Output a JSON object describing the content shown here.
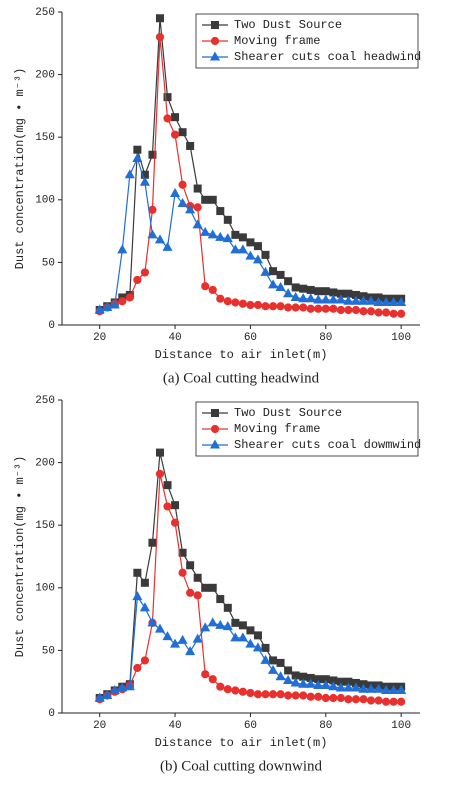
{
  "chart_data": [
    {
      "type": "line",
      "caption": "(a) Coal cutting headwind",
      "xlabel": "Distance to air inlet(m)",
      "ylabel": "Dust concentration(mg • m⁻³)",
      "xlim": [
        10,
        105
      ],
      "xticks": [
        20,
        40,
        60,
        80,
        100
      ],
      "ylim": [
        0,
        250
      ],
      "yticks": [
        0,
        50,
        100,
        150,
        200,
        250
      ],
      "legend": "upper right",
      "x": [
        20,
        22,
        24,
        26,
        28,
        30,
        32,
        34,
        36,
        38,
        40,
        42,
        44,
        46,
        48,
        50,
        52,
        54,
        56,
        58,
        60,
        62,
        64,
        66,
        68,
        70,
        72,
        74,
        76,
        78,
        80,
        82,
        84,
        86,
        88,
        90,
        92,
        94,
        96,
        98,
        100
      ],
      "series": [
        {
          "name": "Two Dust Source",
          "color": "#3a3a3a",
          "marker": "square",
          "values": [
            12,
            15,
            18,
            22,
            24,
            140,
            120,
            136,
            245,
            182,
            166,
            154,
            143,
            109,
            100,
            100,
            91,
            84,
            72,
            70,
            66,
            63,
            56,
            43,
            40,
            35,
            30,
            29,
            28,
            27,
            27,
            26,
            25,
            25,
            24,
            23,
            22,
            22,
            21,
            21,
            21
          ]
        },
        {
          "name": "Moving frame",
          "color": "#e8312f",
          "marker": "circle",
          "values": [
            11,
            14,
            17,
            19,
            22,
            36,
            42,
            92,
            230,
            165,
            152,
            112,
            95,
            94,
            31,
            28,
            21,
            19,
            18,
            17,
            16,
            16,
            15,
            15,
            15,
            14,
            14,
            14,
            13,
            13,
            13,
            13,
            12,
            12,
            12,
            11,
            11,
            10,
            10,
            9,
            9
          ]
        },
        {
          "name": "Shearer cuts coal headwind",
          "color": "#1f6fd6",
          "marker": "triangle",
          "values": [
            12,
            14,
            16,
            60,
            120,
            133,
            114,
            72,
            68,
            62,
            105,
            97,
            92,
            80,
            74,
            72,
            70,
            69,
            60,
            60,
            55,
            52,
            42,
            32,
            30,
            25,
            22,
            21,
            21,
            20,
            20,
            20,
            20,
            19,
            19,
            19,
            19,
            18,
            18,
            18,
            18
          ]
        }
      ]
    },
    {
      "type": "line",
      "caption": "(b) Coal cutting downwind",
      "xlabel": "Distance to air inlet(m)",
      "ylabel": "Dust concentration(mg • m⁻³)",
      "xlim": [
        10,
        105
      ],
      "xticks": [
        20,
        40,
        60,
        80,
        100
      ],
      "ylim": [
        0,
        250
      ],
      "yticks": [
        0,
        50,
        100,
        150,
        200,
        250
      ],
      "legend": "upper right",
      "x": [
        20,
        22,
        24,
        26,
        28,
        30,
        32,
        34,
        36,
        38,
        40,
        42,
        44,
        46,
        48,
        50,
        52,
        54,
        56,
        58,
        60,
        62,
        64,
        66,
        68,
        70,
        72,
        74,
        76,
        78,
        80,
        82,
        84,
        86,
        88,
        90,
        92,
        94,
        96,
        98,
        100
      ],
      "series": [
        {
          "name": "Two Dust Source",
          "color": "#3a3a3a",
          "marker": "square",
          "values": [
            12,
            15,
            18,
            21,
            23,
            112,
            104,
            136,
            208,
            182,
            166,
            128,
            118,
            108,
            100,
            100,
            91,
            84,
            72,
            70,
            66,
            62,
            52,
            42,
            40,
            34,
            30,
            29,
            28,
            27,
            27,
            26,
            25,
            25,
            24,
            23,
            22,
            22,
            21,
            21,
            21
          ]
        },
        {
          "name": "Moving frame",
          "color": "#e8312f",
          "marker": "circle",
          "values": [
            11,
            14,
            17,
            19,
            22,
            36,
            42,
            72,
            191,
            165,
            152,
            112,
            96,
            94,
            31,
            27,
            21,
            19,
            18,
            17,
            16,
            15,
            15,
            15,
            15,
            14,
            14,
            14,
            13,
            13,
            12,
            12,
            12,
            11,
            11,
            11,
            10,
            10,
            9,
            9,
            9
          ]
        },
        {
          "name": "Shearer cuts coal dowmwind",
          "color": "#1f6fd6",
          "marker": "triangle",
          "values": [
            12,
            14,
            18,
            20,
            21,
            93,
            84,
            72,
            67,
            61,
            55,
            58,
            49,
            59,
            68,
            72,
            70,
            69,
            60,
            60,
            55,
            52,
            42,
            34,
            29,
            26,
            24,
            23,
            23,
            22,
            22,
            21,
            20,
            20,
            20,
            19,
            19,
            19,
            18,
            18,
            18
          ]
        }
      ]
    }
  ]
}
